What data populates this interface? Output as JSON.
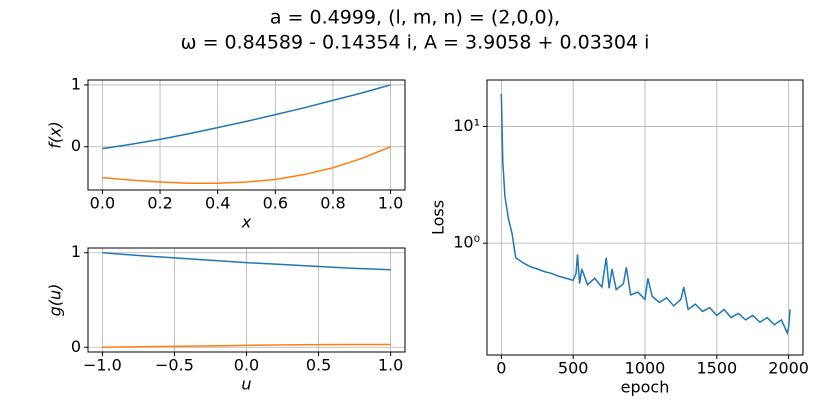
{
  "title": [
    "a = 0.4999,    (l, m, n) = (2,0,0),",
    "ω = 0.84589 - 0.14354 i,    A = 3.9058 + 0.03304 i"
  ],
  "chart_data": [
    {
      "type": "line",
      "xlabel": "x",
      "ylabel": "f(x)",
      "x": [
        0,
        0.1,
        0.2,
        0.3,
        0.4,
        0.5,
        0.6,
        0.7,
        0.8,
        0.9,
        1.0
      ],
      "series": [
        {
          "color": "#1f77b4",
          "values": [
            -0.03,
            0.04,
            0.12,
            0.21,
            0.31,
            0.41,
            0.52,
            0.63,
            0.75,
            0.87,
            1.0
          ]
        },
        {
          "color": "#ff7f0e",
          "values": [
            -0.5,
            -0.54,
            -0.57,
            -0.59,
            -0.59,
            -0.57,
            -0.53,
            -0.45,
            -0.34,
            -0.19,
            0.0
          ]
        }
      ],
      "xlim": [
        -0.05,
        1.05
      ],
      "ylim": [
        -0.7,
        1.08
      ],
      "xticks": [
        {
          "value": 0,
          "label": "0.0"
        },
        {
          "value": 0.2,
          "label": "0.2"
        },
        {
          "value": 0.4,
          "label": "0.4"
        },
        {
          "value": 0.6,
          "label": "0.6"
        },
        {
          "value": 0.8,
          "label": "0.8"
        },
        {
          "value": 1,
          "label": "1.0"
        }
      ],
      "yticks": [
        0,
        1
      ],
      "grid": true,
      "log_y": false
    },
    {
      "type": "line",
      "xlabel": "u",
      "ylabel": "g(u)",
      "x": [
        -1,
        -0.75,
        -0.5,
        -0.25,
        0,
        0.25,
        0.5,
        0.75,
        1
      ],
      "series": [
        {
          "color": "#1f77b4",
          "values": [
            1.0,
            0.97,
            0.945,
            0.92,
            0.895,
            0.875,
            0.855,
            0.835,
            0.82
          ]
        },
        {
          "color": "#ff7f0e",
          "values": [
            0.0,
            0.005,
            0.01,
            0.015,
            0.02,
            0.025,
            0.028,
            0.03,
            0.03
          ]
        }
      ],
      "xlim": [
        -1.1,
        1.1
      ],
      "ylim": [
        -0.05,
        1.05
      ],
      "xticks": [
        {
          "value": -1,
          "label": "−1.0"
        },
        {
          "value": -0.5,
          "label": "−0.5"
        },
        {
          "value": 0,
          "label": "0.0"
        },
        {
          "value": 0.5,
          "label": "0.5"
        },
        {
          "value": 1,
          "label": "1.0"
        }
      ],
      "yticks": [
        0,
        1
      ],
      "grid": true,
      "log_y": false
    },
    {
      "type": "line",
      "xlabel": "epoch",
      "ylabel": "Loss",
      "x": [
        0,
        10,
        25,
        50,
        75,
        90,
        100,
        150,
        200,
        250,
        300,
        350,
        400,
        450,
        500,
        520,
        530,
        545,
        560,
        600,
        650,
        700,
        730,
        750,
        770,
        800,
        850,
        870,
        900,
        950,
        1000,
        1020,
        1050,
        1100,
        1150,
        1200,
        1250,
        1270,
        1300,
        1350,
        1400,
        1450,
        1500,
        1550,
        1600,
        1650,
        1700,
        1750,
        1800,
        1850,
        1900,
        1950,
        1990,
        2000,
        2010
      ],
      "series": [
        {
          "color": "#1f77b4",
          "values": [
            19,
            5,
            2.5,
            1.6,
            1.2,
            0.9,
            0.75,
            0.68,
            0.63,
            0.6,
            0.57,
            0.55,
            0.52,
            0.5,
            0.48,
            0.55,
            0.8,
            0.45,
            0.6,
            0.44,
            0.5,
            0.42,
            0.75,
            0.41,
            0.6,
            0.4,
            0.45,
            0.62,
            0.36,
            0.38,
            0.33,
            0.5,
            0.35,
            0.31,
            0.34,
            0.29,
            0.33,
            0.42,
            0.27,
            0.3,
            0.26,
            0.28,
            0.24,
            0.27,
            0.23,
            0.25,
            0.22,
            0.24,
            0.21,
            0.23,
            0.2,
            0.22,
            0.17,
            0.19,
            0.27
          ]
        }
      ],
      "xlim": [
        -100,
        2100
      ],
      "ylim": [
        0.11,
        25
      ],
      "xticks": [
        0,
        500,
        1000,
        1500,
        2000
      ],
      "yticks": [
        {
          "value": 1,
          "label": "10⁰"
        },
        {
          "value": 10,
          "label": "10¹"
        }
      ],
      "grid": true,
      "log_y": true
    }
  ]
}
